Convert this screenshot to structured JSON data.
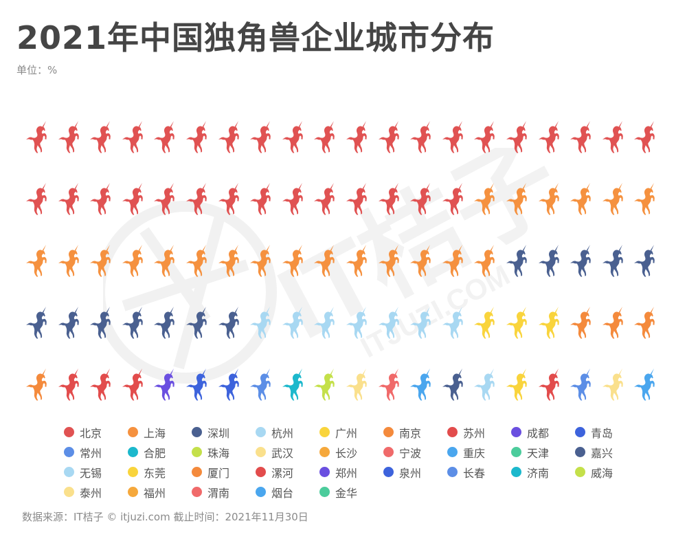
{
  "header": {
    "title": "2021年中国独角兽企业城市分布",
    "unit": "单位：%"
  },
  "footer": {
    "source": "数据来源：IT桔子 © itjuzi.com 截止时间：2021年11月30日"
  },
  "watermark": {
    "text_cn": "IT桔子",
    "text_en": "ITJUZI.COM"
  },
  "chart_data": {
    "type": "pictogram",
    "title": "2021年中国独角兽企业城市分布",
    "subtitle": "单位：%",
    "icon": "unicorn-icon",
    "grid": {
      "rows": 5,
      "columns": 20,
      "total_icons": 100
    },
    "legend_position": "bottom",
    "categories": [
      "北京",
      "上海",
      "深圳",
      "杭州",
      "广州",
      "南京",
      "苏州",
      "成都",
      "青岛",
      "常州",
      "合肥",
      "珠海",
      "武汉",
      "宁波",
      "重庆",
      "嘉兴",
      "无锡",
      "东莞",
      "漯河",
      "长春",
      "泰州",
      "烟台",
      "长沙",
      "天津",
      "郑州",
      "泉州",
      "济南",
      "威海",
      "厦门",
      "福州",
      "渭南",
      "金华"
    ],
    "values": [
      34,
      21,
      12,
      7,
      3,
      4,
      3,
      1,
      2,
      1,
      1,
      1,
      1,
      1,
      1,
      1,
      1,
      1,
      1,
      1,
      1,
      1,
      0,
      0,
      0,
      0,
      0,
      0,
      0,
      0,
      0,
      0
    ],
    "colors": {
      "北京": "#e05252",
      "上海": "#f5913f",
      "深圳": "#4a6090",
      "杭州": "#a8d8f2",
      "广州": "#f9d43c",
      "南京": "#f48a3c",
      "苏州": "#e24c4c",
      "成都": "#6a4fe0",
      "青岛": "#3d63dc",
      "常州": "#5c8ee6",
      "合肥": "#1cb8cc",
      "珠海": "#c4e04a",
      "武汉": "#fae08c",
      "长沙": "#f5a83c",
      "宁波": "#f06a6a",
      "重庆": "#4aa6ee",
      "天津": "#4ccc9c",
      "嘉兴": "#4a6090",
      "无锡": "#a8d8f2",
      "东莞": "#f9d43c",
      "厦门": "#f48a3c",
      "漯河": "#e24c4c",
      "郑州": "#6a4fe0",
      "泉州": "#3d63dc",
      "长春": "#5c8ee6",
      "济南": "#1cb8cc",
      "威海": "#c4e04a",
      "泰州": "#fae08c",
      "福州": "#f5a83c",
      "渭南": "#f06a6a",
      "烟台": "#4aa6ee",
      "金华": "#4ccc9c"
    },
    "icon_sequence": [
      "北京",
      "北京",
      "北京",
      "北京",
      "北京",
      "北京",
      "北京",
      "北京",
      "北京",
      "北京",
      "北京",
      "北京",
      "北京",
      "北京",
      "北京",
      "北京",
      "北京",
      "北京",
      "北京",
      "北京",
      "北京",
      "北京",
      "北京",
      "北京",
      "北京",
      "北京",
      "北京",
      "北京",
      "北京",
      "北京",
      "北京",
      "北京",
      "北京",
      "北京",
      "上海",
      "上海",
      "上海",
      "上海",
      "上海",
      "上海",
      "上海",
      "上海",
      "上海",
      "上海",
      "上海",
      "上海",
      "上海",
      "上海",
      "上海",
      "上海",
      "上海",
      "上海",
      "上海",
      "上海",
      "上海",
      "深圳",
      "深圳",
      "深圳",
      "深圳",
      "深圳",
      "深圳",
      "深圳",
      "深圳",
      "深圳",
      "深圳",
      "深圳",
      "深圳",
      "杭州",
      "杭州",
      "杭州",
      "杭州",
      "杭州",
      "杭州",
      "杭州",
      "广州",
      "广州",
      "广州",
      "南京",
      "南京",
      "南京",
      "南京",
      "苏州",
      "苏州",
      "苏州",
      "成都",
      "青岛",
      "青岛",
      "常州",
      "合肥",
      "珠海",
      "武汉",
      "宁波",
      "重庆",
      "嘉兴",
      "无锡",
      "东莞",
      "漯河",
      "长春",
      "泰州",
      "烟台"
    ]
  },
  "legend": {
    "items": [
      {
        "label": "北京",
        "color": "#e05252"
      },
      {
        "label": "上海",
        "color": "#f5913f"
      },
      {
        "label": "深圳",
        "color": "#4a6090"
      },
      {
        "label": "杭州",
        "color": "#a8d8f2"
      },
      {
        "label": "广州",
        "color": "#f9d43c"
      },
      {
        "label": "南京",
        "color": "#f48a3c"
      },
      {
        "label": "苏州",
        "color": "#e24c4c"
      },
      {
        "label": "成都",
        "color": "#6a4fe0"
      },
      {
        "label": "青岛",
        "color": "#3d63dc"
      },
      {
        "label": "常州",
        "color": "#5c8ee6"
      },
      {
        "label": "合肥",
        "color": "#1cb8cc"
      },
      {
        "label": "珠海",
        "color": "#c4e04a"
      },
      {
        "label": "武汉",
        "color": "#fae08c"
      },
      {
        "label": "长沙",
        "color": "#f5a83c"
      },
      {
        "label": "宁波",
        "color": "#f06a6a"
      },
      {
        "label": "重庆",
        "color": "#4aa6ee"
      },
      {
        "label": "天津",
        "color": "#4ccc9c"
      },
      {
        "label": "嘉兴",
        "color": "#4a6090"
      },
      {
        "label": "无锡",
        "color": "#a8d8f2"
      },
      {
        "label": "东莞",
        "color": "#f9d43c"
      },
      {
        "label": "厦门",
        "color": "#f48a3c"
      },
      {
        "label": "漯河",
        "color": "#e24c4c"
      },
      {
        "label": "郑州",
        "color": "#6a4fe0"
      },
      {
        "label": "泉州",
        "color": "#3d63dc"
      },
      {
        "label": "长春",
        "color": "#5c8ee6"
      },
      {
        "label": "济南",
        "color": "#1cb8cc"
      },
      {
        "label": "威海",
        "color": "#c4e04a"
      },
      {
        "label": "泰州",
        "color": "#fae08c"
      },
      {
        "label": "福州",
        "color": "#f5a83c"
      },
      {
        "label": "渭南",
        "color": "#f06a6a"
      },
      {
        "label": "烟台",
        "color": "#4aa6ee"
      },
      {
        "label": "金华",
        "color": "#4ccc9c"
      }
    ]
  }
}
